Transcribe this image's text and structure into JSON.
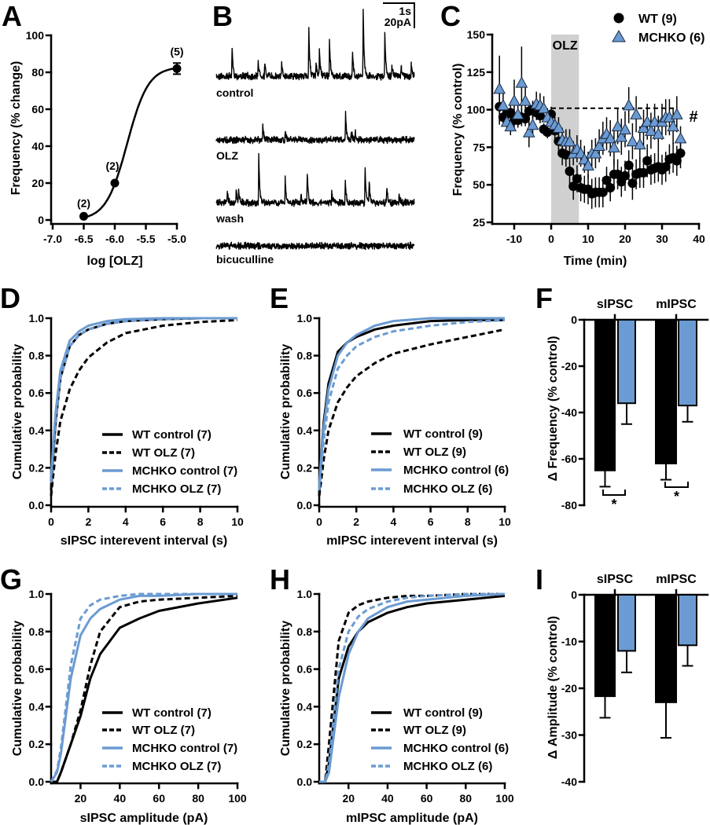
{
  "chart_data": [
    {
      "letter": "A",
      "type": "scatter",
      "x": [
        -6.5,
        -6.0,
        -5.0
      ],
      "y": [
        2,
        20,
        82
      ],
      "sem": [
        0,
        0,
        3
      ],
      "n_labels": [
        "(2)",
        "(2)",
        "(5)"
      ],
      "fit": {
        "type": "sigmoid",
        "bottom": 0,
        "top": 83,
        "logEC50": -5.8,
        "hill": 2.56
      },
      "xlabel": "log [OLZ]",
      "ylabel": "Frequency (% change)",
      "xlim": [
        -7,
        -5
      ],
      "ylim": [
        0,
        100
      ],
      "xticks": [
        -7,
        -6.5,
        -6,
        -5.5,
        -5
      ],
      "xtick_labels": [
        "-7.0",
        "-6.5",
        "-6.0",
        "-5.5",
        "-5.0"
      ],
      "yticks": [
        0,
        20,
        40,
        60,
        80,
        100
      ],
      "ytick_labels": [
        "0",
        "20",
        "40",
        "60",
        "80",
        "100"
      ]
    },
    {
      "letter": "B",
      "type": "traces",
      "scale_bar": {
        "time_label": "1s",
        "current_label": "20pA",
        "time_s": 1,
        "current_pA": 20
      },
      "duration_s": 6.3,
      "traces": [
        {
          "label": "control",
          "events": [
            [
              0.5,
              26
            ],
            [
              1.33,
              15
            ],
            [
              1.54,
              11
            ],
            [
              2.08,
              10
            ],
            [
              2.94,
              45
            ],
            [
              3.17,
              12
            ],
            [
              3.28,
              23
            ],
            [
              3.6,
              30
            ],
            [
              4.33,
              22
            ],
            [
              4.67,
              59
            ],
            [
              5.36,
              36
            ],
            [
              5.58,
              11
            ],
            [
              5.88,
              10
            ],
            [
              6.2,
              9
            ]
          ]
        },
        {
          "label": "OLZ",
          "events": [
            [
              1.48,
              14
            ],
            [
              2.19,
              7
            ],
            [
              4.11,
              25
            ],
            [
              4.29,
              9
            ],
            [
              4.42,
              6
            ]
          ]
        },
        {
          "label": "wash",
          "events": [
            [
              0.35,
              10
            ],
            [
              0.63,
              11
            ],
            [
              0.71,
              12
            ],
            [
              1.35,
              42
            ],
            [
              2.19,
              20
            ],
            [
              2.69,
              9
            ],
            [
              2.89,
              27
            ],
            [
              3.67,
              9
            ],
            [
              4.1,
              20
            ],
            [
              4.73,
              33
            ],
            [
              4.86,
              19
            ],
            [
              5.42,
              14
            ],
            [
              5.81,
              7
            ]
          ]
        },
        {
          "label": "bicuculline",
          "events": []
        }
      ]
    },
    {
      "letter": "C",
      "type": "scatter",
      "t_start": -14,
      "t_step": 1,
      "series": [
        {
          "name": "WT (9)",
          "marker": "circle",
          "color": "#000000",
          "values": [
            102,
            95,
            97,
            98,
            93,
            93,
            95,
            94,
            99,
            100,
            98,
            96,
            87,
            85,
            97,
            86,
            79,
            71,
            70,
            59,
            49,
            54,
            48,
            47,
            47,
            44,
            45,
            45,
            45,
            53,
            48,
            57,
            57,
            52,
            56,
            63,
            51,
            57,
            58,
            58,
            66,
            60,
            61,
            62,
            60,
            62,
            67,
            68,
            66,
            71
          ],
          "sem": [
            12,
            6,
            5,
            6,
            6,
            5,
            6,
            5,
            6,
            6,
            5,
            5,
            4,
            4,
            5,
            6,
            7,
            8,
            8,
            9,
            9,
            9,
            9,
            9,
            10,
            10,
            10,
            10,
            10,
            9,
            9,
            10,
            10,
            10,
            10,
            10,
            11,
            10,
            10,
            10,
            11,
            10,
            10,
            10,
            10,
            10,
            10,
            10,
            10,
            10
          ]
        },
        {
          "name": "MCHKO (6)",
          "marker": "triangle",
          "color": "#6b9bd2",
          "values": [
            114,
            103,
            92,
            89,
            106,
            97,
            118,
            106,
            85,
            90,
            104,
            103,
            101,
            95,
            92,
            90,
            88,
            80,
            79,
            79,
            71,
            74,
            71,
            67,
            63,
            71,
            71,
            76,
            81,
            84,
            81,
            75,
            89,
            82,
            87,
            103,
            79,
            97,
            77,
            88,
            92,
            86,
            92,
            84,
            92,
            95,
            95,
            89,
            97,
            81
          ],
          "sem": [
            22,
            8,
            6,
            6,
            14,
            8,
            24,
            10,
            10,
            8,
            8,
            8,
            8,
            6,
            6,
            6,
            7,
            8,
            8,
            8,
            8,
            9,
            9,
            9,
            9,
            9,
            10,
            11,
            11,
            11,
            12,
            12,
            12,
            12,
            12,
            12,
            12,
            12,
            12,
            12,
            12,
            12,
            12,
            12,
            12,
            12,
            12,
            12,
            12,
            8
          ]
        }
      ],
      "drug_label": "OLZ",
      "drug_window": [
        0,
        7.5
      ],
      "reference_line": 101,
      "significance": "#",
      "xlabel": "Time (min)",
      "ylabel": "Frequency (% control)",
      "xlim": [
        -15,
        40
      ],
      "ylim": [
        25,
        150
      ],
      "xticks": [
        -10,
        0,
        10,
        20,
        30,
        40
      ],
      "xtick_labels": [
        "-10",
        "0",
        "10",
        "20",
        "30",
        "40"
      ],
      "yticks": [
        25,
        50,
        75,
        100,
        125,
        150
      ],
      "ytick_labels": [
        "25",
        "50",
        "75",
        "100",
        "125",
        "150"
      ]
    },
    {
      "letter": "D",
      "type": "line",
      "x": [
        0,
        0.1,
        0.25,
        0.5,
        1,
        1.5,
        2,
        3,
        4,
        6,
        8,
        10
      ],
      "series": [
        {
          "name": "WT control (7)",
          "color": "#000000",
          "dashed": false,
          "values": [
            0.08,
            0.25,
            0.45,
            0.68,
            0.85,
            0.91,
            0.94,
            0.97,
            0.985,
            0.995,
            1,
            1
          ]
        },
        {
          "name": "WT OLZ (7)",
          "color": "#000000",
          "dashed": true,
          "values": [
            0.05,
            0.15,
            0.28,
            0.45,
            0.62,
            0.72,
            0.79,
            0.87,
            0.92,
            0.96,
            0.98,
            0.99
          ]
        },
        {
          "name": "MCHKO control (7)",
          "color": "#6b9bd2",
          "dashed": false,
          "values": [
            0.15,
            0.3,
            0.5,
            0.72,
            0.88,
            0.93,
            0.96,
            0.985,
            0.995,
            1,
            1,
            1
          ]
        },
        {
          "name": "MCHKO OLZ (7)",
          "color": "#6b9bd2",
          "dashed": true,
          "values": [
            0.12,
            0.27,
            0.46,
            0.68,
            0.85,
            0.91,
            0.94,
            0.97,
            0.985,
            0.995,
            1,
            1
          ]
        }
      ],
      "xlabel": "sIPSC interevent interval (s)",
      "ylabel": "Cumulative probability",
      "xlim": [
        0,
        10
      ],
      "ylim": [
        0,
        1
      ],
      "xticks": [
        0,
        2,
        4,
        6,
        8,
        10
      ],
      "xtick_labels": [
        "0",
        "2",
        "4",
        "6",
        "8",
        "10"
      ],
      "yticks": [
        0,
        0.2,
        0.4,
        0.6,
        0.8,
        1.0
      ],
      "ytick_labels": [
        "0.0",
        "0.2",
        "0.4",
        "0.6",
        "0.8",
        "1.0"
      ],
      "legend": "bottom-right"
    },
    {
      "letter": "E",
      "type": "line",
      "x": [
        0,
        0.1,
        0.25,
        0.5,
        1,
        1.5,
        2,
        3,
        4,
        6,
        8,
        10
      ],
      "series": [
        {
          "name": "WT control (9)",
          "color": "#000000",
          "dashed": false,
          "values": [
            0.05,
            0.25,
            0.45,
            0.65,
            0.82,
            0.87,
            0.9,
            0.94,
            0.96,
            0.985,
            0.99,
            0.99
          ]
        },
        {
          "name": "WT OLZ (9)",
          "color": "#000000",
          "dashed": true,
          "values": [
            0.05,
            0.13,
            0.25,
            0.4,
            0.55,
            0.63,
            0.69,
            0.76,
            0.81,
            0.86,
            0.9,
            0.94
          ]
        },
        {
          "name": "MCHKO control (6)",
          "color": "#6b9bd2",
          "dashed": false,
          "values": [
            0.1,
            0.25,
            0.42,
            0.62,
            0.8,
            0.87,
            0.91,
            0.96,
            0.985,
            1,
            1,
            1
          ]
        },
        {
          "name": "MCHKO OLZ (6)",
          "color": "#6b9bd2",
          "dashed": true,
          "values": [
            0.08,
            0.2,
            0.35,
            0.55,
            0.73,
            0.8,
            0.85,
            0.9,
            0.93,
            0.96,
            0.98,
            0.99
          ]
        }
      ],
      "xlabel": "mIPSC interevent interval (s)",
      "ylabel": "Cumulative probability",
      "xlim": [
        0,
        10
      ],
      "ylim": [
        0,
        1
      ],
      "xticks": [
        0,
        2,
        4,
        6,
        8,
        10
      ],
      "xtick_labels": [
        "0",
        "2",
        "4",
        "6",
        "8",
        "10"
      ],
      "yticks": [
        0,
        0.2,
        0.4,
        0.6,
        0.8,
        1.0
      ],
      "ytick_labels": [
        "0.0",
        "0.2",
        "0.4",
        "0.6",
        "0.8",
        "1.0"
      ],
      "legend": "bottom-right"
    },
    {
      "letter": "F",
      "type": "bar",
      "categories": [
        "sIPSC",
        "mIPSC"
      ],
      "series": [
        {
          "name": "WT",
          "color": "#000000",
          "values": [
            -65,
            -62
          ],
          "sem": [
            7,
            7
          ]
        },
        {
          "name": "MCHKO",
          "color": "#6b9bd2",
          "values": [
            -36,
            -37
          ],
          "sem": [
            9,
            7
          ]
        }
      ],
      "significance": [
        "*",
        "*"
      ],
      "ylabel": "Δ Frequency (% control)",
      "ylim": [
        -80,
        0
      ],
      "yticks": [
        0,
        -20,
        -40,
        -60,
        -80
      ],
      "ytick_labels": [
        "0",
        "-20",
        "-40",
        "-60",
        "-80"
      ]
    },
    {
      "letter": "G",
      "type": "line",
      "x": [
        5,
        8,
        10,
        15,
        20,
        25,
        30,
        40,
        50,
        60,
        80,
        100
      ],
      "series": [
        {
          "name": "WT control (7)",
          "color": "#000000",
          "dashed": false,
          "values": [
            0,
            0,
            0.05,
            0.2,
            0.35,
            0.55,
            0.68,
            0.82,
            0.87,
            0.91,
            0.95,
            0.98
          ]
        },
        {
          "name": "WT OLZ (7)",
          "color": "#000000",
          "dashed": true,
          "values": [
            0,
            0,
            0.05,
            0.2,
            0.38,
            0.62,
            0.8,
            0.93,
            0.96,
            0.97,
            0.98,
            0.99
          ]
        },
        {
          "name": "MCHKO control (7)",
          "color": "#6b9bd2",
          "dashed": false,
          "values": [
            0,
            0.05,
            0.15,
            0.55,
            0.78,
            0.87,
            0.92,
            0.97,
            0.99,
            0.99,
            1,
            1
          ]
        },
        {
          "name": "MCHKO OLZ (7)",
          "color": "#6b9bd2",
          "dashed": true,
          "values": [
            0,
            0.06,
            0.18,
            0.62,
            0.87,
            0.94,
            0.97,
            0.99,
            1,
            1,
            1,
            1
          ]
        }
      ],
      "xlabel": "sIPSC amplitude (pA)",
      "ylabel": "Cumulative probability",
      "xlim": [
        5,
        100
      ],
      "ylim": [
        0,
        1
      ],
      "xticks": [
        20,
        40,
        60,
        80,
        100
      ],
      "xtick_labels": [
        "20",
        "40",
        "60",
        "80",
        "100"
      ],
      "yticks": [
        0,
        0.2,
        0.4,
        0.6,
        0.8,
        1.0
      ],
      "ytick_labels": [
        "0.0",
        "0.2",
        "0.4",
        "0.6",
        "0.8",
        "1.0"
      ],
      "legend": "bottom-right"
    },
    {
      "letter": "H",
      "type": "line",
      "x": [
        5,
        8,
        10,
        15,
        20,
        25,
        30,
        40,
        50,
        60,
        80,
        100
      ],
      "series": [
        {
          "name": "WT control (9)",
          "color": "#000000",
          "dashed": false,
          "values": [
            0,
            0,
            0.1,
            0.55,
            0.72,
            0.8,
            0.85,
            0.9,
            0.93,
            0.95,
            0.97,
            0.99
          ]
        },
        {
          "name": "WT OLZ (9)",
          "color": "#000000",
          "dashed": true,
          "values": [
            0,
            0,
            0.2,
            0.75,
            0.9,
            0.94,
            0.96,
            0.98,
            0.99,
            0.99,
            1,
            1
          ]
        },
        {
          "name": "MCHKO control (6)",
          "color": "#6b9bd2",
          "dashed": false,
          "values": [
            0,
            0,
            0.05,
            0.45,
            0.68,
            0.8,
            0.87,
            0.93,
            0.96,
            0.97,
            0.99,
            1
          ]
        },
        {
          "name": "MCHKO OLZ (6)",
          "color": "#6b9bd2",
          "dashed": true,
          "values": [
            0,
            0,
            0.1,
            0.6,
            0.8,
            0.88,
            0.92,
            0.96,
            0.98,
            0.99,
            1,
            1
          ]
        }
      ],
      "xlabel": "mIPSC amplitude (pA)",
      "ylabel": "Cumulative probability",
      "xlim": [
        5,
        100
      ],
      "ylim": [
        0,
        1
      ],
      "xticks": [
        20,
        40,
        60,
        80,
        100
      ],
      "xtick_labels": [
        "20",
        "40",
        "60",
        "80",
        "100"
      ],
      "yticks": [
        0,
        0.2,
        0.4,
        0.6,
        0.8,
        1.0
      ],
      "ytick_labels": [
        "0.0",
        "0.2",
        "0.4",
        "0.6",
        "0.8",
        "1.0"
      ],
      "legend": "bottom-right"
    },
    {
      "letter": "I",
      "type": "bar",
      "categories": [
        "sIPSC",
        "mIPSC"
      ],
      "series": [
        {
          "name": "WT",
          "color": "#000000",
          "values": [
            -21.7,
            -23
          ],
          "sem": [
            4.6,
            7.6
          ]
        },
        {
          "name": "MCHKO",
          "color": "#6b9bd2",
          "values": [
            -12,
            -10.8
          ],
          "sem": [
            4.6,
            4.4
          ]
        }
      ],
      "ylabel": "Δ Amplitude (% control)",
      "ylim": [
        -40,
        0
      ],
      "yticks": [
        0,
        -10,
        -20,
        -30,
        -40
      ],
      "ytick_labels": [
        "0",
        "-10",
        "-20",
        "-30",
        "-40"
      ]
    }
  ]
}
